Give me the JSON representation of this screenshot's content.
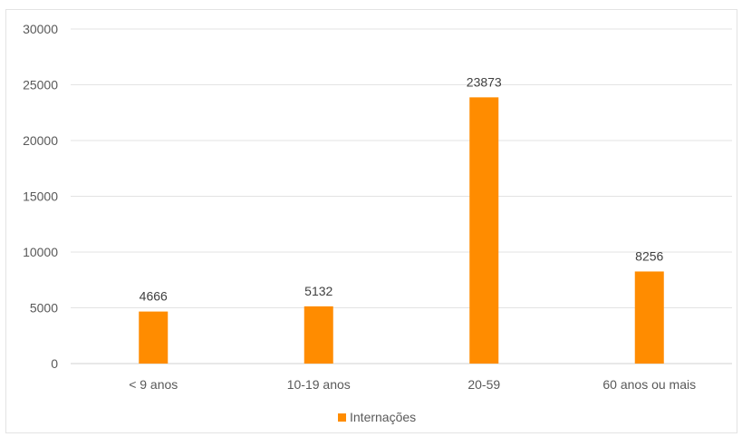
{
  "chart_data": {
    "type": "bar",
    "title": "",
    "xlabel": "",
    "ylabel": "",
    "categories": [
      "< 9 anos",
      "10-19 anos",
      "20-59",
      "60 anos ou mais"
    ],
    "series": [
      {
        "name": "Internações",
        "values": [
          4666,
          5132,
          23873,
          8256
        ],
        "color": "#ff8c00"
      }
    ],
    "y_ticks": [
      "0",
      "5000",
      "10000",
      "15000",
      "20000",
      "25000",
      "30000"
    ],
    "ylim": [
      0,
      30000
    ],
    "grid": true,
    "legend_position": "bottom"
  }
}
